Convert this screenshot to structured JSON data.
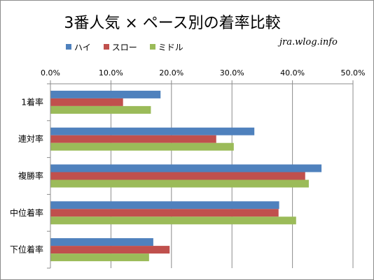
{
  "chart_data": {
    "type": "bar",
    "orientation": "horizontal",
    "title": "3番人気 × ペース別の着率比較",
    "watermark": "jra.wlog.info",
    "categories": [
      "1着率",
      "連対率",
      "複勝率",
      "中位着率",
      "下位着率"
    ],
    "series": [
      {
        "name": "ハイ",
        "color": "#4f81bd",
        "values": [
          18.2,
          33.7,
          44.8,
          37.8,
          17.0
        ]
      },
      {
        "name": "スロー",
        "color": "#c0504d",
        "values": [
          12.0,
          27.4,
          42.1,
          37.7,
          19.7
        ]
      },
      {
        "name": "ミドル",
        "color": "#9bbb59",
        "values": [
          16.6,
          30.3,
          42.7,
          40.6,
          16.3
        ]
      }
    ],
    "xlim": [
      0,
      50
    ],
    "x_ticks": [
      "0.0%",
      "10.0%",
      "20.0%",
      "30.0%",
      "40.0%",
      "50.0%"
    ],
    "grid": true,
    "legend_position": "top-left"
  }
}
